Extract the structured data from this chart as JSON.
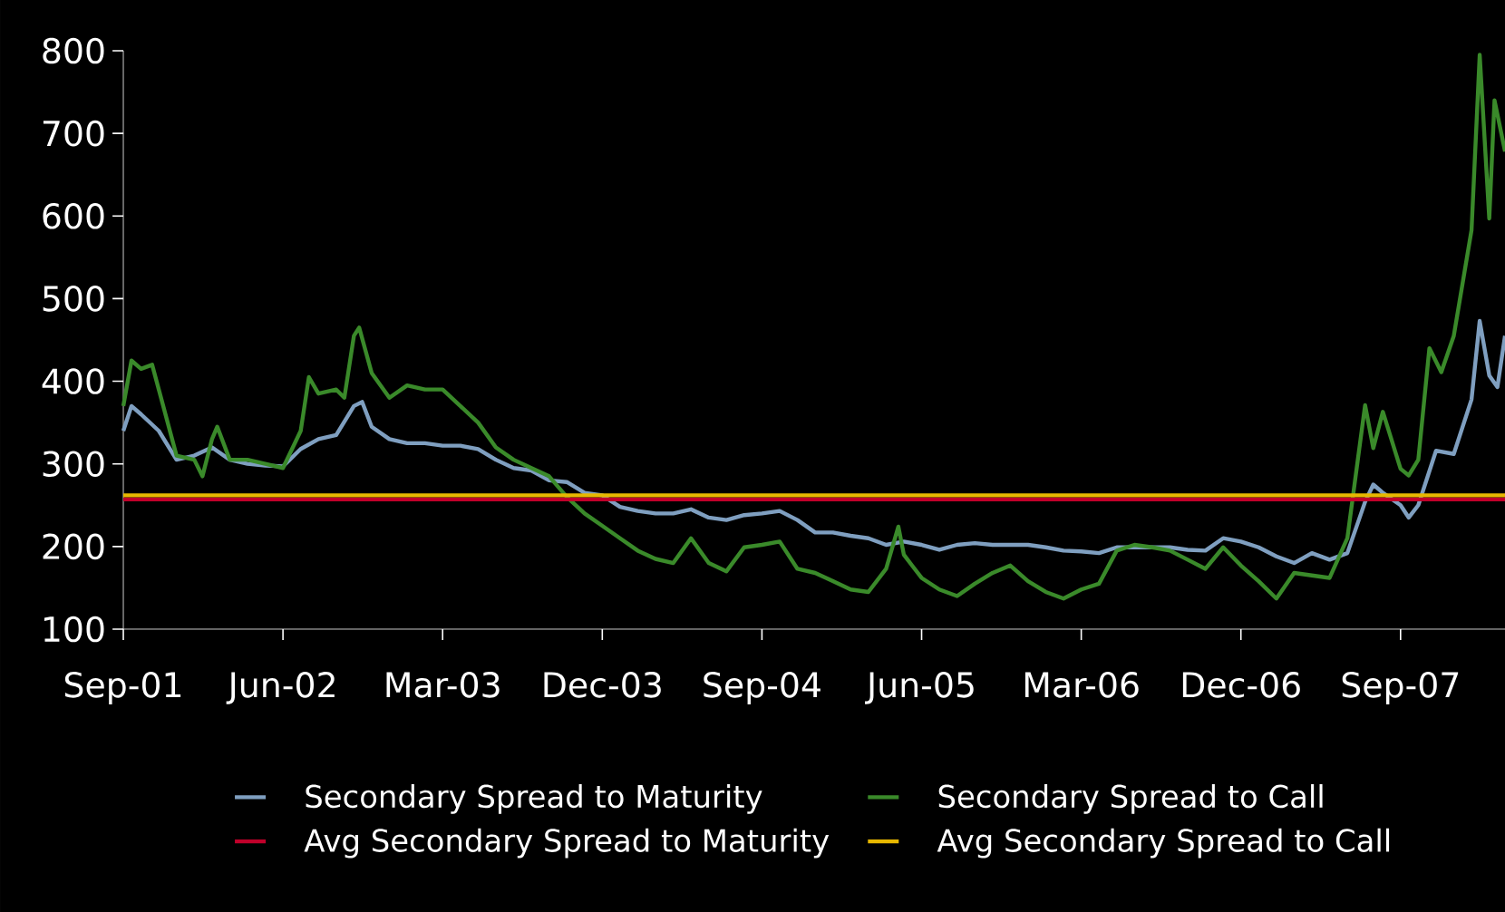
{
  "chart_data": {
    "type": "line",
    "xlim": [
      "2001-09",
      "2008-02-28"
    ],
    "xticks": [
      {
        "value": "2001-09",
        "label": "Sep-01"
      },
      {
        "value": "2002-06",
        "label": "Jun-02"
      },
      {
        "value": "2003-03",
        "label": "Mar-03"
      },
      {
        "value": "2003-12",
        "label": "Dec-03"
      },
      {
        "value": "2004-09",
        "label": "Sep-04"
      },
      {
        "value": "2005-06",
        "label": "Jun-05"
      },
      {
        "value": "2006-03",
        "label": "Mar-06"
      },
      {
        "value": "2006-12",
        "label": "Dec-06"
      },
      {
        "value": "2007-09",
        "label": "Sep-07"
      }
    ],
    "ylim": [
      100,
      800
    ],
    "yticks": [
      100,
      200,
      300,
      400,
      500,
      600,
      700,
      800
    ],
    "legend": "bottom",
    "series": [
      {
        "name": "Secondary Spread to Maturity",
        "color": "#7f9fc0",
        "x": [
          "2001-09",
          "2001-09-15",
          "2001-10",
          "2001-11",
          "2001-12",
          "2002-01",
          "2002-02",
          "2002-03",
          "2002-04",
          "2002-05",
          "2002-06",
          "2002-07",
          "2002-08",
          "2002-09",
          "2002-10",
          "2002-10-15",
          "2002-11",
          "2002-12",
          "2003-01",
          "2003-02",
          "2003-03",
          "2003-04",
          "2003-05",
          "2003-06",
          "2003-07",
          "2003-08",
          "2003-09",
          "2003-10",
          "2003-11",
          "2003-12",
          "2004-01",
          "2004-02",
          "2004-03",
          "2004-04",
          "2004-05",
          "2004-06",
          "2004-07",
          "2004-08",
          "2004-09",
          "2004-10",
          "2004-11",
          "2004-12",
          "2005-01",
          "2005-02",
          "2005-03",
          "2005-04",
          "2005-05",
          "2005-06",
          "2005-07",
          "2005-08",
          "2005-09",
          "2005-10",
          "2005-11",
          "2005-12",
          "2006-01",
          "2006-02",
          "2006-03",
          "2006-04",
          "2006-05",
          "2006-06",
          "2006-07",
          "2006-08",
          "2006-09",
          "2006-10",
          "2006-11",
          "2006-12",
          "2007-01",
          "2007-02",
          "2007-03",
          "2007-04",
          "2007-05",
          "2007-06",
          "2007-07",
          "2007-07-15",
          "2007-08",
          "2007-09",
          "2007-09-15",
          "2007-10",
          "2007-11",
          "2007-12",
          "2008-01",
          "2008-01-15",
          "2008-02",
          "2008-02-15",
          "2008-02-28"
        ],
        "values": [
          340,
          370,
          360,
          340,
          305,
          310,
          320,
          305,
          300,
          298,
          297,
          318,
          330,
          335,
          370,
          375,
          345,
          330,
          325,
          325,
          322,
          322,
          318,
          305,
          295,
          292,
          280,
          278,
          265,
          262,
          248,
          243,
          240,
          240,
          245,
          235,
          232,
          238,
          240,
          243,
          232,
          217,
          217,
          213,
          210,
          202,
          206,
          202,
          196,
          202,
          204,
          202,
          202,
          202,
          199,
          195,
          194,
          192,
          199,
          199,
          199,
          199,
          196,
          195,
          210,
          206,
          199,
          188,
          180,
          192,
          184,
          192,
          254,
          275,
          265,
          250,
          235,
          250,
          316,
          312,
          378,
          473,
          407,
          393,
          455
        ]
      },
      {
        "name": "Secondary Spread to Call",
        "color": "#3a8a2a",
        "x": [
          "2001-09",
          "2001-09-15",
          "2001-10",
          "2001-10-20",
          "2001-11",
          "2001-12",
          "2002-01",
          "2002-01-15",
          "2002-02",
          "2002-02-10",
          "2002-03",
          "2002-04",
          "2002-05",
          "2002-06",
          "2002-07",
          "2002-07-15",
          "2002-08",
          "2002-09",
          "2002-09-15",
          "2002-10",
          "2002-10-10",
          "2002-11",
          "2002-12",
          "2003-01",
          "2003-02",
          "2003-03",
          "2003-04",
          "2003-05",
          "2003-06",
          "2003-07",
          "2003-08",
          "2003-09",
          "2003-10",
          "2003-11",
          "2003-12",
          "2004-01",
          "2004-02",
          "2004-03",
          "2004-04",
          "2004-05",
          "2004-06",
          "2004-07",
          "2004-08",
          "2004-09",
          "2004-10",
          "2004-11",
          "2004-12",
          "2005-01",
          "2005-02",
          "2005-03",
          "2005-04",
          "2005-04-22",
          "2005-05",
          "2005-05-15",
          "2005-06",
          "2005-07",
          "2005-08",
          "2005-09",
          "2005-10",
          "2005-11",
          "2005-12",
          "2006-01",
          "2006-02",
          "2006-03",
          "2006-04",
          "2006-05",
          "2006-06",
          "2006-07",
          "2006-08",
          "2006-09",
          "2006-10",
          "2006-11",
          "2006-12",
          "2007-01",
          "2007-02",
          "2007-03",
          "2007-04",
          "2007-05",
          "2007-06",
          "2007-07",
          "2007-07-15",
          "2007-08",
          "2007-09",
          "2007-09-15",
          "2007-10",
          "2007-10-20",
          "2007-11-10",
          "2007-12",
          "2008-01",
          "2008-01-15",
          "2008-02",
          "2008-02-10",
          "2008-02-28"
        ],
        "values": [
          370,
          425,
          415,
          420,
          390,
          310,
          305,
          285,
          330,
          345,
          305,
          305,
          300,
          295,
          340,
          405,
          385,
          390,
          380,
          455,
          465,
          410,
          380,
          395,
          390,
          390,
          370,
          350,
          320,
          305,
          295,
          285,
          260,
          240,
          225,
          210,
          195,
          185,
          180,
          210,
          180,
          170,
          199,
          202,
          206,
          173,
          168,
          158,
          148,
          145,
          173,
          224,
          190,
          177,
          162,
          148,
          140,
          155,
          168,
          177,
          158,
          145,
          137,
          148,
          155,
          195,
          202,
          199,
          195,
          184,
          173,
          199,
          177,
          158,
          137,
          168,
          165,
          162,
          210,
          371,
          319,
          363,
          294,
          286,
          305,
          440,
          411,
          455,
          583,
          795,
          597,
          740,
          678
        ]
      },
      {
        "name": "Avg Secondary Spread to Maturity",
        "color": "#c0002a",
        "x": [
          "2001-09",
          "2008-02-28"
        ],
        "values": [
          257,
          257
        ]
      },
      {
        "name": "Avg Secondary Spread to Call",
        "color": "#e8b800",
        "x": [
          "2001-09",
          "2008-02-28"
        ],
        "values": [
          262,
          262
        ]
      }
    ]
  }
}
